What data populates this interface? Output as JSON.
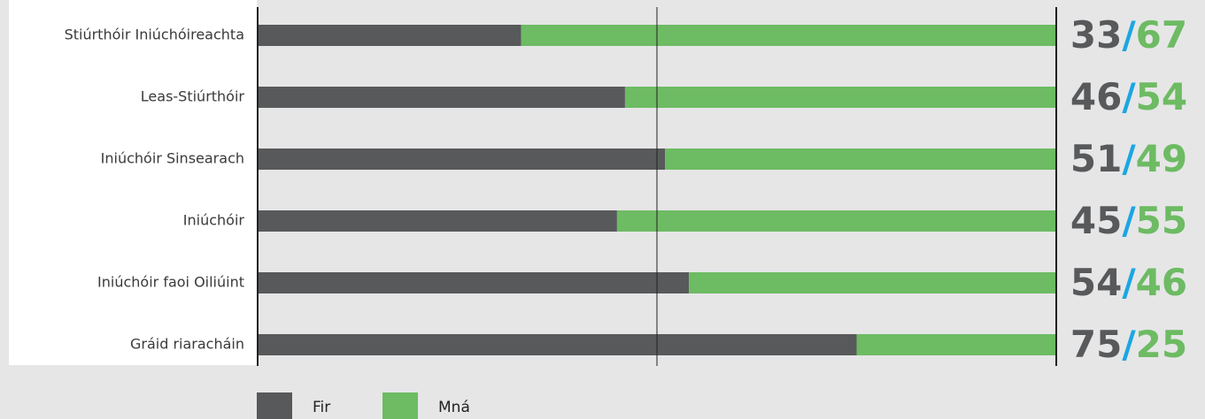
{
  "chart_data": {
    "type": "stacked_bar_horizontal",
    "categories": [
      "Stiúrthóir Iniúchóireachta",
      "Leas-Stiúrthóir",
      "Iniúchóir Sinsearach",
      "Iniúchóir",
      "Iniúchóir faoi Oiliúint",
      "Gráid riaracháin"
    ],
    "series": [
      {
        "name": "Fir",
        "color": "#58595b",
        "values": [
          33,
          46,
          51,
          45,
          54,
          75
        ]
      },
      {
        "name": "Mná",
        "color": "#6dbb63",
        "values": [
          67,
          54,
          49,
          55,
          46,
          25
        ]
      }
    ],
    "xlim": [
      0,
      100
    ],
    "xticks": [
      0,
      50,
      100
    ],
    "grid": true,
    "label_separator": "/"
  }
}
